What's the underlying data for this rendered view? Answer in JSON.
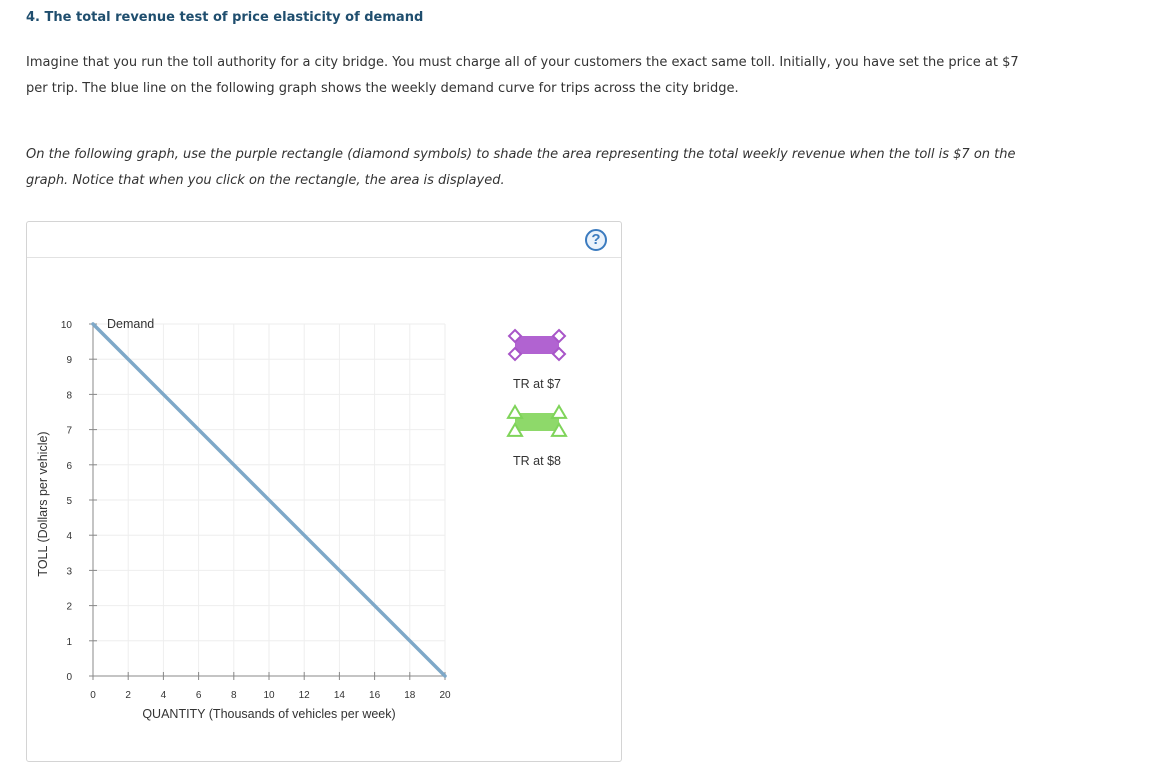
{
  "question": {
    "title": "4. The total revenue test of price elasticity of demand",
    "paragraph1": "Imagine that you run the toll authority for a city bridge. You must charge all of your customers the exact same toll. Initially, you have set the price at $7 per trip. The blue line on the following graph shows the weekly demand curve for trips across the city bridge.",
    "paragraph2": "On the following graph, use the purple rectangle (diamond symbols) to shade the area representing the total weekly revenue when the toll is $7 on the graph. Notice that when you click on the rectangle, the area is displayed."
  },
  "graph": {
    "help_symbol": "?",
    "help_icon": "question-circle-icon",
    "tools": [
      {
        "label": "TR at $7",
        "color": "#a855c8",
        "fill": "#b163d1",
        "marker": "diamond"
      },
      {
        "label": "TR at $8",
        "color": "#7fd45a",
        "fill": "#8ed96a",
        "marker": "triangle"
      }
    ]
  },
  "chart_data": {
    "type": "line",
    "xlabel": "QUANTITY (Thousands of vehicles per week)",
    "ylabel": "TOLL (Dollars per vehicle)",
    "xlim": [
      0,
      20
    ],
    "ylim": [
      0,
      10
    ],
    "x_ticks": [
      0,
      2,
      4,
      6,
      8,
      10,
      12,
      14,
      16,
      18,
      20
    ],
    "y_ticks": [
      0,
      1,
      2,
      3,
      4,
      5,
      6,
      7,
      8,
      9,
      10
    ],
    "grid": true,
    "series": [
      {
        "name": "Demand",
        "color": "#7ea8c8",
        "points": [
          [
            0,
            10
          ],
          [
            20,
            0
          ]
        ]
      }
    ]
  }
}
